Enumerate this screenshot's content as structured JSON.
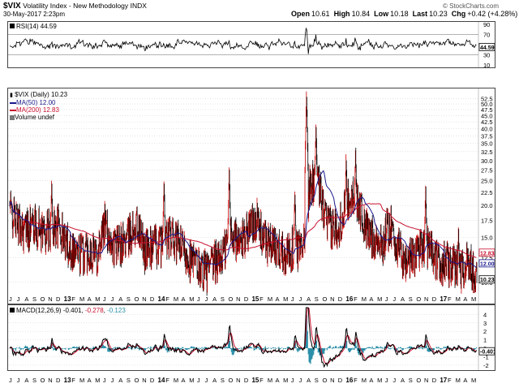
{
  "header": {
    "symbol": "$VIX",
    "description": "Volatility Index - New Methodology",
    "exchange": "INDX",
    "date": "30-May-2017 2:23pm",
    "open_label": "Open",
    "open": "10.61",
    "high_label": "High",
    "high": "10.84",
    "low_label": "Low",
    "low": "10.18",
    "last_label": "Last",
    "last": "10.23",
    "chg_label": "Chg",
    "chg": "+0.42 (+4.28%)",
    "watermark": "© StockCharts.com"
  },
  "rsi": {
    "legend": "RSI(14) 44.59",
    "ticks": [
      "90",
      "70",
      "50",
      "30",
      "10"
    ],
    "value_label": "44.59"
  },
  "price": {
    "legend_main": "$VIX (Daily) 10.23",
    "legend_ma50": "MA(50) 12.00",
    "legend_ma200": "MA(200) 12.83",
    "legend_volume": "Volume undef",
    "ticks": [
      "52.5",
      "50.0",
      "47.5",
      "45.0",
      "42.5",
      "40.0",
      "37.5",
      "35.0",
      "32.5",
      "30.0",
      "27.5",
      "25.0",
      "22.5",
      "20.0",
      "17.5",
      "15.0",
      "12.5",
      "10.0"
    ],
    "ma200_value": "12.83",
    "ma50_value": "12.00",
    "last_value": "10.23"
  },
  "macd": {
    "legend_name": "MACD(12,26,9)",
    "legend_macd": "-0.401",
    "legend_signal": "-0.278",
    "legend_hist": "-0.123",
    "ticks": [
      "4",
      "3",
      "2",
      "1",
      "0",
      "-1",
      "-2"
    ],
    "value_label": "-0.401"
  },
  "xaxis": {
    "labels": [
      "J",
      "J",
      "A",
      "S",
      "O",
      "N",
      "D",
      "13",
      "F",
      "M",
      "A",
      "M",
      "J",
      "J",
      "A",
      "S",
      "O",
      "N",
      "D",
      "14",
      "F",
      "M",
      "A",
      "M",
      "J",
      "J",
      "A",
      "S",
      "O",
      "N",
      "D",
      "15",
      "F",
      "M",
      "A",
      "M",
      "J",
      "J",
      "A",
      "S",
      "O",
      "N",
      "D",
      "16",
      "F",
      "M",
      "A",
      "M",
      "J",
      "J",
      "A",
      "S",
      "O",
      "N",
      "D",
      "17",
      "F",
      "M",
      "A",
      "M"
    ]
  },
  "colors": {
    "price_bars": "#000000",
    "price_up": "#cc0000",
    "ma50": "#1a1a8c",
    "ma200": "#c8102e",
    "rsi_line": "#000000",
    "macd_line": "#000000",
    "signal_line": "#c8102e",
    "histogram": "#2a8fa8",
    "grid": "#cccccc"
  },
  "chart_data": [
    {
      "type": "line",
      "title": "RSI(14)",
      "ylim": [
        10,
        90
      ],
      "reference_lines": [
        70,
        30
      ],
      "last_value": 44.59,
      "grid": true
    },
    {
      "type": "bar",
      "title": "$VIX (Daily)",
      "ylim": [
        8.5,
        55
      ],
      "log_scale": true,
      "grid": true,
      "series": [
        {
          "name": "MA(50)",
          "last": 12.0
        },
        {
          "name": "MA(200)",
          "last": 12.83
        }
      ],
      "x": [
        "J",
        "J",
        "A",
        "S",
        "O",
        "N",
        "D",
        "13",
        "F",
        "M",
        "A",
        "M",
        "J",
        "J",
        "A",
        "S",
        "O",
        "N",
        "D",
        "14",
        "F",
        "M",
        "A",
        "M",
        "J",
        "J",
        "A",
        "S",
        "O",
        "N",
        "D",
        "15",
        "F",
        "M",
        "A",
        "M",
        "J",
        "J",
        "A",
        "S",
        "O",
        "N",
        "D",
        "16",
        "F",
        "M",
        "A",
        "M",
        "J",
        "J",
        "A",
        "S",
        "O",
        "N",
        "D",
        "17",
        "F",
        "M",
        "A",
        "M"
      ],
      "y_approx_monthly": [
        19.5,
        17,
        16,
        17,
        16,
        16,
        17,
        14.5,
        13.5,
        13,
        13.5,
        13,
        17,
        14,
        14,
        15,
        17,
        13.5,
        14,
        14,
        15,
        14.5,
        13.5,
        12,
        11.5,
        11,
        12,
        13,
        16,
        14,
        16,
        18,
        15,
        14,
        13.5,
        13,
        14,
        13,
        25,
        24,
        17,
        16,
        18,
        22,
        21,
        16,
        15,
        14,
        17,
        13.5,
        12,
        13,
        14,
        14,
        12,
        12,
        11.5,
        11.5,
        12,
        10.5
      ],
      "last": 10.23
    },
    {
      "type": "line",
      "title": "MACD(12,26,9)",
      "ylim": [
        -2.3,
        4.8
      ],
      "series": [
        {
          "name": "MACD",
          "last": -0.401
        },
        {
          "name": "Signal",
          "last": -0.278
        },
        {
          "name": "Histogram",
          "last": -0.123
        }
      ],
      "grid": true
    }
  ]
}
